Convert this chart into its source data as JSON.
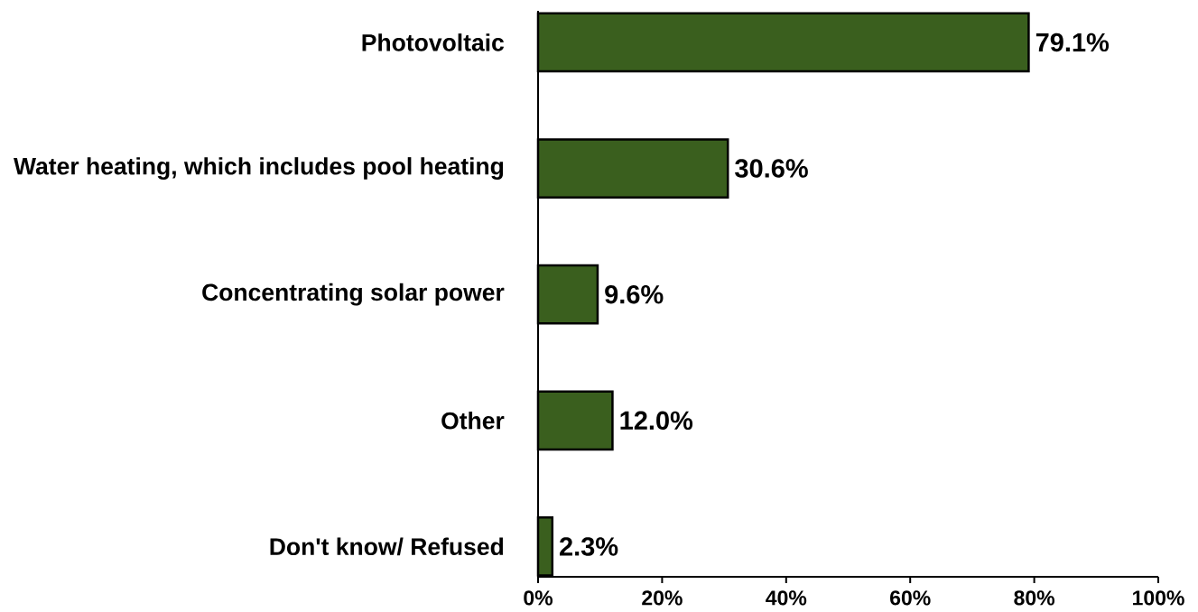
{
  "chart_data": {
    "type": "bar",
    "orientation": "horizontal",
    "categories": [
      "Photovoltaic",
      "Water heating, which includes pool heating",
      "Concentrating solar power",
      "Other",
      "Don't know/ Refused"
    ],
    "values": [
      79.1,
      30.6,
      9.6,
      12.0,
      2.3
    ],
    "value_labels": [
      "79.1%",
      "30.6%",
      "9.6%",
      "12.0%",
      "2.3%"
    ],
    "color": "#3a5f1e",
    "xlim": [
      0,
      100
    ],
    "xticks": [
      {
        "value": 0,
        "label": "0%"
      },
      {
        "value": 20,
        "label": "20%"
      },
      {
        "value": 40,
        "label": "40%"
      },
      {
        "value": 60,
        "label": "60%"
      },
      {
        "value": 80,
        "label": "80%"
      },
      {
        "value": 100,
        "label": "100%"
      }
    ]
  }
}
